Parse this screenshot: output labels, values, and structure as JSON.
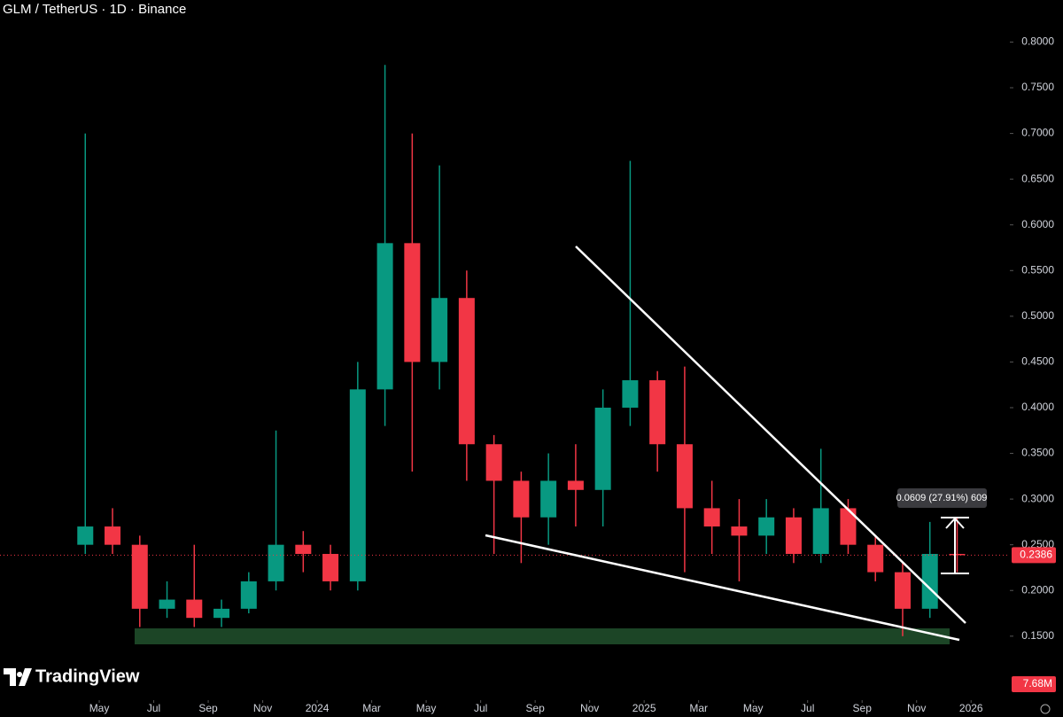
{
  "chart_data": {
    "type": "candlestick",
    "title": "GLM / TetherUS · 1D · Binance",
    "x": [
      "2023-04",
      "2023-05",
      "2023-06",
      "2023-07",
      "2023-08",
      "2023-09",
      "2023-10",
      "2023-11",
      "2023-12",
      "2024-01",
      "2024-02",
      "2024-03",
      "2024-04",
      "2024-05",
      "2024-06",
      "2024-07",
      "2024-08",
      "2024-09",
      "2024-10",
      "2024-11",
      "2024-12",
      "2025-01",
      "2025-02",
      "2025-03",
      "2025-04",
      "2025-05",
      "2025-06",
      "2025-07",
      "2025-08",
      "2025-09",
      "2025-10",
      "2025-11",
      "2025-12"
    ],
    "open": [
      0.25,
      0.27,
      0.25,
      0.18,
      0.19,
      0.17,
      0.18,
      0.21,
      0.25,
      0.24,
      0.21,
      0.42,
      0.58,
      0.45,
      0.52,
      0.36,
      0.32,
      0.28,
      0.32,
      0.31,
      0.4,
      0.43,
      0.36,
      0.29,
      0.27,
      0.26,
      0.28,
      0.24,
      0.29,
      0.25,
      0.22,
      0.18,
      0.24
    ],
    "high": [
      0.7,
      0.29,
      0.26,
      0.21,
      0.25,
      0.19,
      0.22,
      0.375,
      0.265,
      0.25,
      0.45,
      0.775,
      0.7,
      0.665,
      0.55,
      0.37,
      0.33,
      0.35,
      0.36,
      0.42,
      0.67,
      0.44,
      0.445,
      0.32,
      0.3,
      0.3,
      0.29,
      0.355,
      0.3,
      0.26,
      0.23,
      0.275,
      0.28
    ],
    "low": [
      0.24,
      0.24,
      0.16,
      0.17,
      0.16,
      0.16,
      0.175,
      0.2,
      0.22,
      0.2,
      0.2,
      0.38,
      0.33,
      0.42,
      0.32,
      0.24,
      0.23,
      0.25,
      0.27,
      0.27,
      0.38,
      0.33,
      0.22,
      0.24,
      0.21,
      0.24,
      0.23,
      0.23,
      0.24,
      0.21,
      0.15,
      0.17,
      0.22
    ],
    "close": [
      0.27,
      0.25,
      0.18,
      0.19,
      0.17,
      0.18,
      0.21,
      0.25,
      0.24,
      0.21,
      0.42,
      0.58,
      0.45,
      0.52,
      0.36,
      0.32,
      0.28,
      0.32,
      0.31,
      0.4,
      0.43,
      0.36,
      0.29,
      0.27,
      0.26,
      0.28,
      0.24,
      0.29,
      0.25,
      0.22,
      0.18,
      0.24,
      0.2386
    ],
    "up_color": "#089981",
    "down_color": "#f23645",
    "ylim": [
      0.08,
      0.846
    ],
    "yticks": [
      {
        "value": 0.15,
        "label": "0.1500"
      },
      {
        "value": 0.2,
        "label": "0.2000"
      },
      {
        "value": 0.25,
        "label": "0.2500"
      },
      {
        "value": 0.3,
        "label": "0.3000"
      },
      {
        "value": 0.35,
        "label": "0.3500"
      },
      {
        "value": 0.4,
        "label": "0.4000"
      },
      {
        "value": 0.45,
        "label": "0.4500"
      },
      {
        "value": 0.5,
        "label": "0.5000"
      },
      {
        "value": 0.55,
        "label": "0.5500"
      },
      {
        "value": 0.6,
        "label": "0.6000"
      },
      {
        "value": 0.65,
        "label": "0.6500"
      },
      {
        "value": 0.7,
        "label": "0.7000"
      },
      {
        "value": 0.75,
        "label": "0.7500"
      },
      {
        "value": 0.8,
        "label": "0.8000"
      }
    ],
    "xlim": [
      "2023-01",
      "2026-02"
    ],
    "xticks": [
      {
        "value": "2023-05",
        "label": "May"
      },
      {
        "value": "2023-07",
        "label": "Jul"
      },
      {
        "value": "2023-09",
        "label": "Sep"
      },
      {
        "value": "2023-11",
        "label": "Nov"
      },
      {
        "value": "2024-01",
        "label": "2024"
      },
      {
        "value": "2024-03",
        "label": "Mar"
      },
      {
        "value": "2024-05",
        "label": "May"
      },
      {
        "value": "2024-07",
        "label": "Jul"
      },
      {
        "value": "2024-09",
        "label": "Sep"
      },
      {
        "value": "2024-11",
        "label": "Nov"
      },
      {
        "value": "2025-01",
        "label": "2025"
      },
      {
        "value": "2025-03",
        "label": "Mar"
      },
      {
        "value": "2025-05",
        "label": "May"
      },
      {
        "value": "2025-07",
        "label": "Jul"
      },
      {
        "value": "2025-09",
        "label": "Sep"
      },
      {
        "value": "2025-11",
        "label": "Nov"
      },
      {
        "value": "2026-01",
        "label": "2026"
      }
    ],
    "annotation": "0.0609 (27.91%) 609",
    "volume_label": "7.68M",
    "watermark": "TradingView"
  }
}
